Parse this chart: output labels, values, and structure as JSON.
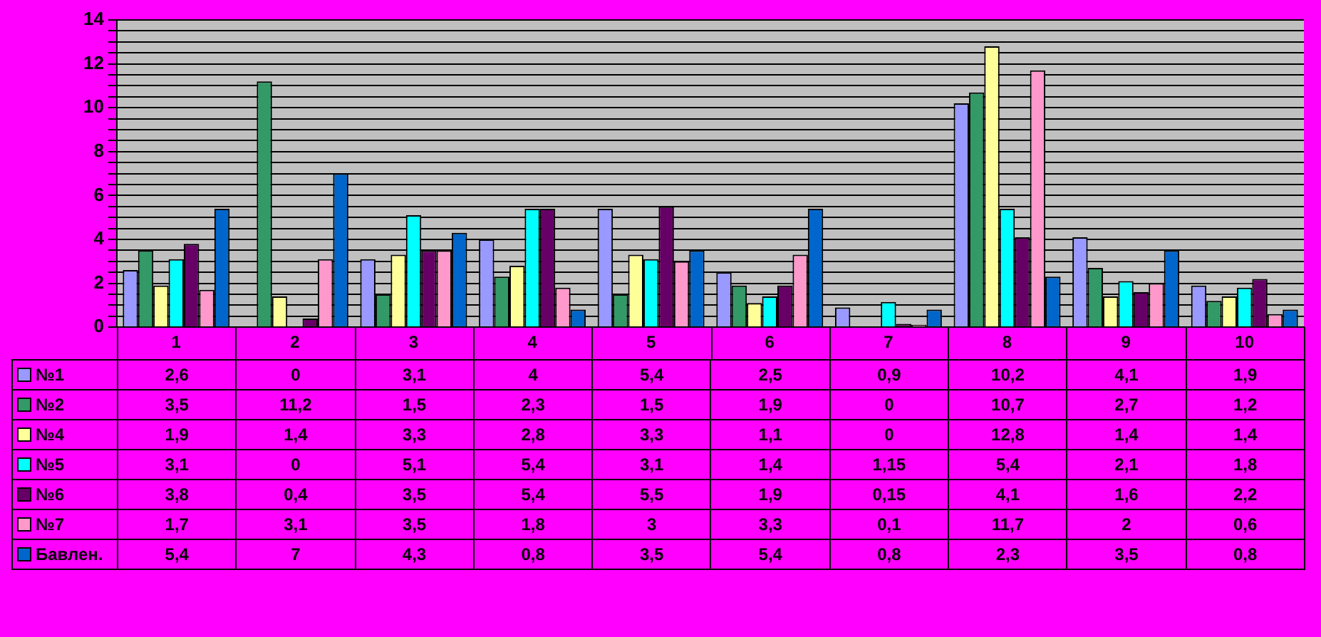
{
  "chart_data": {
    "type": "bar",
    "categories": [
      "1",
      "2",
      "3",
      "4",
      "5",
      "6",
      "7",
      "8",
      "9",
      "10"
    ],
    "ylim": [
      0,
      14
    ],
    "yticks": [
      0,
      {
        "value": 0.5,
        "label": null
      },
      {
        "value": 1,
        "label": null
      },
      {
        "value": 1.5,
        "label": null
      },
      2,
      {
        "value": 2.5,
        "label": null
      },
      {
        "value": 3,
        "label": null
      },
      {
        "value": 3.5,
        "label": null
      },
      4,
      {
        "value": 4.5,
        "label": null
      },
      {
        "value": 5,
        "label": null
      },
      {
        "value": 5.5,
        "label": null
      },
      6,
      {
        "value": 6.5,
        "label": null
      },
      {
        "value": 7,
        "label": null
      },
      {
        "value": 7.5,
        "label": null
      },
      8,
      {
        "value": 8.5,
        "label": null
      },
      {
        "value": 9,
        "label": null
      },
      {
        "value": 9.5,
        "label": null
      },
      10,
      {
        "value": 10.5,
        "label": null
      },
      {
        "value": 11,
        "label": null
      },
      {
        "value": 11.5,
        "label": null
      },
      12,
      {
        "value": 12.5,
        "label": null
      },
      {
        "value": 13,
        "label": null
      },
      {
        "value": 13.5,
        "label": null
      },
      14
    ],
    "grid": "y",
    "legend": "bottom left",
    "series": [
      {
        "name": "№1",
        "color": "#9999ff",
        "values": [
          2.6,
          0,
          3.1,
          4,
          5.4,
          2.5,
          0.9,
          10.2,
          4.1,
          1.9
        ],
        "value_labels": [
          "2,6",
          "0",
          "3,1",
          "4",
          "5,4",
          "2,5",
          "0,9",
          "10,2",
          "4,1",
          "1,9"
        ]
      },
      {
        "name": "№2",
        "color": "#339966",
        "values": [
          3.5,
          11.2,
          1.5,
          2.3,
          1.5,
          1.9,
          0,
          10.7,
          2.7,
          1.2
        ],
        "value_labels": [
          "3,5",
          "11,2",
          "1,5",
          "2,3",
          "1,5",
          "1,9",
          "0",
          "10,7",
          "2,7",
          "1,2"
        ]
      },
      {
        "name": "№4",
        "color": "#ffff99",
        "values": [
          1.9,
          1.4,
          3.3,
          2.8,
          3.3,
          1.1,
          0,
          12.8,
          1.4,
          1.4
        ],
        "value_labels": [
          "1,9",
          "1,4",
          "3,3",
          "2,8",
          "3,3",
          "1,1",
          "0",
          "12,8",
          "1,4",
          "1,4"
        ]
      },
      {
        "name": "№5",
        "color": "#00ffff",
        "values": [
          3.1,
          0,
          5.1,
          5.4,
          3.1,
          1.4,
          1.15,
          5.4,
          2.1,
          1.8
        ],
        "value_labels": [
          "3,1",
          "0",
          "5,1",
          "5,4",
          "3,1",
          "1,4",
          "1,15",
          "5,4",
          "2,1",
          "1,8"
        ]
      },
      {
        "name": "№6",
        "color": "#660066",
        "values": [
          3.8,
          0.4,
          3.5,
          5.4,
          5.5,
          1.9,
          0.15,
          4.1,
          1.6,
          2.2
        ],
        "value_labels": [
          "3,8",
          "0,4",
          "3,5",
          "5,4",
          "5,5",
          "1,9",
          "0,15",
          "4,1",
          "1,6",
          "2,2"
        ]
      },
      {
        "name": "№7",
        "color": "#ff99cc",
        "values": [
          1.7,
          3.1,
          3.5,
          1.8,
          3,
          3.3,
          0.1,
          11.7,
          2,
          0.6
        ],
        "value_labels": [
          "1,7",
          "3,1",
          "3,5",
          "1,8",
          "3",
          "3,3",
          "0,1",
          "11,7",
          "2",
          "0,6"
        ]
      },
      {
        "name": "Бавлен.",
        "color": "#0066cc",
        "values": [
          5.4,
          7,
          4.3,
          0.8,
          3.5,
          5.4,
          0.8,
          2.3,
          3.5,
          0.8
        ],
        "value_labels": [
          "5,4",
          "7",
          "4,3",
          "0,8",
          "3,5",
          "5,4",
          "0,8",
          "2,3",
          "3,5",
          "0,8"
        ]
      }
    ]
  }
}
